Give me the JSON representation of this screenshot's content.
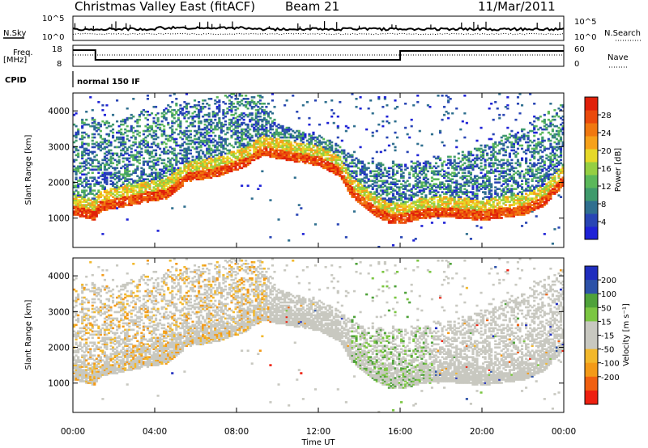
{
  "header": {
    "station": "Christmas Valley East (fitACF)",
    "beam": "Beam 21",
    "date": "11/Mar/2011"
  },
  "status": {
    "nsky_label": "N.Sky",
    "nsearch_label": "N.Search",
    "left_ticks": [
      "10^5",
      "10^0"
    ],
    "right_ticks": [
      "10^5",
      "10^0"
    ],
    "freq_label_line1": "Freq.",
    "freq_label_line2": "[MHz]",
    "freq_ticks": [
      "18",
      "8"
    ],
    "nave_label": "Nave",
    "nave_ticks": [
      "60",
      "0"
    ],
    "cpid_label": "CPID",
    "cpid_text": "normal 150 IF"
  },
  "colors": {
    "power_scale": [
      "#1e22d6",
      "#2845b4",
      "#2f6f8f",
      "#3f9a6c",
      "#5bb85a",
      "#95cf42",
      "#e6d828",
      "#f6a11a",
      "#f07810",
      "#ea4a0c",
      "#e0200a"
    ],
    "velocity_scale": [
      "#ee2010",
      "#f06010",
      "#f39a18",
      "#f2b82c",
      "#c8c8c0",
      "#c8c8c0",
      "#7bc642",
      "#4fa23a",
      "#2d52a8",
      "#1f2dbe"
    ],
    "ground_scatter": "#bebebe"
  },
  "chart_data": [
    {
      "type": "heatmap",
      "name": "power",
      "xlabel": "Time UT",
      "ylabel": "Slant Range [km]",
      "x_ticks": [
        "00:00",
        "04:00",
        "08:00",
        "12:00",
        "16:00",
        "20:00",
        "00:00"
      ],
      "y_ticks": [
        "1000",
        "2000",
        "3000",
        "4000"
      ],
      "xlim": [
        0,
        24
      ],
      "ylim": [
        180,
        4500
      ],
      "colorbar": {
        "label": "Power [dB]",
        "range": [
          0,
          32
        ],
        "tick_labels": [
          "4",
          "8",
          "12",
          "16",
          "20",
          "24",
          "28"
        ]
      },
      "echo_bands": [
        {
          "t0": 0.0,
          "t1": 1.2,
          "r_lo": 1200,
          "r_hi": 1700
        },
        {
          "t0": 1.2,
          "t1": 5.0,
          "r_lo": 1400,
          "r_hi": 2300
        },
        {
          "t0": 5.0,
          "t1": 9.0,
          "r_lo": 2200,
          "r_hi": 3200
        },
        {
          "t0": 9.0,
          "t1": 10.5,
          "r_lo": 3000,
          "r_hi": 4000
        },
        {
          "t0": 10.5,
          "t1": 13.5,
          "r_lo": 2400,
          "r_hi": 3400
        },
        {
          "t0": 13.5,
          "t1": 16.0,
          "r_lo": 800,
          "r_hi": 1800
        },
        {
          "t0": 16.0,
          "t1": 20.0,
          "r_lo": 1000,
          "r_hi": 2200
        },
        {
          "t0": 20.0,
          "t1": 24.0,
          "r_lo": 1400,
          "r_hi": 3600
        }
      ]
    },
    {
      "type": "heatmap",
      "name": "velocity",
      "xlabel": "Time UT",
      "ylabel": "Slant Range [km]",
      "x_ticks": [
        "00:00",
        "04:00",
        "08:00",
        "12:00",
        "16:00",
        "20:00",
        "00:00"
      ],
      "y_ticks": [
        "1000",
        "2000",
        "3000",
        "4000"
      ],
      "xlim": [
        0,
        24
      ],
      "ylim": [
        180,
        4500
      ],
      "colorbar": {
        "label": "Velocity [m s⁻¹]",
        "range": [
          -250,
          250
        ],
        "tick_labels": [
          "200",
          "100",
          "50",
          "15",
          "-15",
          "-50",
          "-100",
          "-200"
        ]
      }
    }
  ]
}
